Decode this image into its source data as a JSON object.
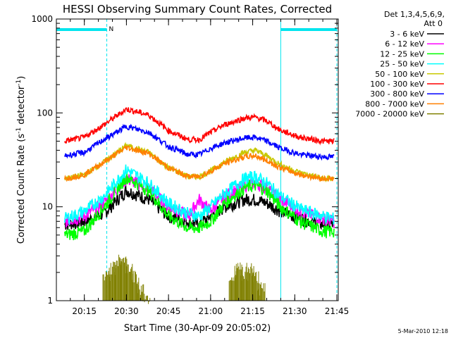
{
  "chart_data": {
    "type": "line",
    "title": "HESSI Observing Summary Count Rates, Corrected",
    "xlabel": "Start Time (30-Apr-09 20:05:02)",
    "ylabel_main": "Corrected Count Rate (s",
    "ylabel_sup1": "-1",
    "ylabel_mid": " detector",
    "ylabel_sup2": "-1",
    "ylabel_end": ")",
    "yscale": "log",
    "ylim": [
      1,
      1000
    ],
    "xlim": [
      "20:05:02",
      "21:45:30"
    ],
    "x_ticks": [
      "20:15",
      "20:30",
      "20:45",
      "21:00",
      "21:15",
      "21:30",
      "21:45"
    ],
    "y_ticks": [
      "1",
      "10",
      "100",
      "1000"
    ],
    "footer": "5-Mar-2010 12:18",
    "legend": {
      "header1": "Det 1,3,4,5,6,9,",
      "header2": "Att 0",
      "placement": "outside-right-top"
    },
    "night_markers": [
      {
        "label": "N",
        "start": "20:05:02",
        "end": "20:23:00"
      },
      {
        "label": "",
        "start": "21:25:00",
        "end": "21:45:00"
      }
    ],
    "series": [
      {
        "name": "3 - 6 keV",
        "color": "#000000",
        "x": [
          "20:08",
          "20:15",
          "20:22",
          "20:30",
          "20:38",
          "20:45",
          "20:52",
          "20:56",
          "21:00",
          "21:05",
          "21:12",
          "21:16",
          "21:20",
          "21:25",
          "21:32",
          "21:40",
          "21:44"
        ],
        "y": [
          6.5,
          7,
          8.5,
          15,
          12,
          8,
          7,
          6.5,
          8,
          10,
          12,
          12,
          11,
          9,
          7.5,
          6.5,
          6.5
        ]
      },
      {
        "name": "6 - 12 keV",
        "color": "#ff00ff",
        "x": [
          "20:08",
          "20:15",
          "20:22",
          "20:30",
          "20:38",
          "20:45",
          "20:52",
          "20:56",
          "21:00",
          "21:05",
          "21:12",
          "21:16",
          "21:20",
          "21:25",
          "21:32",
          "21:40",
          "21:44"
        ],
        "y": [
          7,
          8,
          11,
          20,
          16,
          10,
          8,
          12,
          9,
          13,
          17,
          18,
          16,
          12,
          9,
          7.5,
          7
        ]
      },
      {
        "name": "12 - 25 keV",
        "color": "#00ff00",
        "x": [
          "20:08",
          "20:15",
          "20:22",
          "20:30",
          "20:38",
          "20:45",
          "20:52",
          "20:56",
          "21:00",
          "21:05",
          "21:12",
          "21:16",
          "21:20",
          "21:25",
          "21:32",
          "21:40",
          "21:44"
        ],
        "y": [
          5,
          5.5,
          10,
          21,
          15,
          8,
          6,
          6,
          7,
          11,
          16,
          17,
          15,
          10,
          7,
          5.5,
          5.5
        ]
      },
      {
        "name": "25 - 50 keV",
        "color": "#00ffff",
        "x": [
          "20:08",
          "20:15",
          "20:22",
          "20:30",
          "20:38",
          "20:45",
          "20:52",
          "20:56",
          "21:00",
          "21:05",
          "21:12",
          "21:16",
          "21:20",
          "21:25",
          "21:32",
          "21:40",
          "21:44"
        ],
        "y": [
          7.5,
          9,
          13,
          25,
          18,
          11,
          8.5,
          8,
          10,
          14,
          20,
          21,
          18,
          13,
          9.5,
          8,
          7.5
        ]
      },
      {
        "name": "50 - 100 keV",
        "color": "#c8c800",
        "x": [
          "20:08",
          "20:15",
          "20:22",
          "20:30",
          "20:38",
          "20:45",
          "20:52",
          "20:56",
          "21:00",
          "21:05",
          "21:12",
          "21:16",
          "21:20",
          "21:25",
          "21:32",
          "21:40",
          "21:44"
        ],
        "y": [
          20,
          22,
          30,
          45,
          38,
          26,
          21,
          21,
          24,
          30,
          38,
          40,
          35,
          28,
          23,
          20,
          20
        ]
      },
      {
        "name": "100 - 300 keV",
        "color": "#ff0000",
        "x": [
          "20:08",
          "20:15",
          "20:22",
          "20:30",
          "20:38",
          "20:45",
          "20:52",
          "20:56",
          "21:00",
          "21:05",
          "21:12",
          "21:16",
          "21:20",
          "21:25",
          "21:32",
          "21:40",
          "21:44"
        ],
        "y": [
          50,
          55,
          75,
          110,
          95,
          65,
          52,
          52,
          62,
          75,
          88,
          90,
          82,
          65,
          55,
          50,
          50
        ]
      },
      {
        "name": "300 - 800 keV",
        "color": "#0000ff",
        "x": [
          "20:08",
          "20:15",
          "20:22",
          "20:30",
          "20:38",
          "20:45",
          "20:52",
          "20:56",
          "21:00",
          "21:05",
          "21:12",
          "21:16",
          "21:20",
          "21:25",
          "21:32",
          "21:40",
          "21:44"
        ],
        "y": [
          35,
          38,
          52,
          72,
          62,
          44,
          36,
          36,
          42,
          48,
          54,
          55,
          50,
          42,
          36,
          34,
          34
        ]
      },
      {
        "name": "800 - 7000 keV",
        "color": "#ff8000",
        "x": [
          "20:08",
          "20:15",
          "20:22",
          "20:30",
          "20:38",
          "20:45",
          "20:52",
          "20:56",
          "21:00",
          "21:05",
          "21:12",
          "21:16",
          "21:20",
          "21:25",
          "21:32",
          "21:40",
          "21:44"
        ],
        "y": [
          20,
          22,
          30,
          43,
          37,
          26,
          21,
          21,
          24,
          29,
          34,
          35,
          31,
          26,
          22,
          20,
          20
        ]
      },
      {
        "name": "7000 - 20000 keV",
        "color": "#808000",
        "x": [
          "20:23",
          "20:25",
          "20:27",
          "20:29",
          "20:31",
          "20:33",
          "20:35",
          "20:37",
          "21:08",
          "21:10",
          "21:12",
          "21:14",
          "21:16",
          "21:18"
        ],
        "y": [
          2,
          2.5,
          3,
          3,
          2.5,
          2,
          1.5,
          1.2,
          2,
          2.5,
          2,
          2.5,
          2,
          1.5
        ]
      }
    ]
  }
}
